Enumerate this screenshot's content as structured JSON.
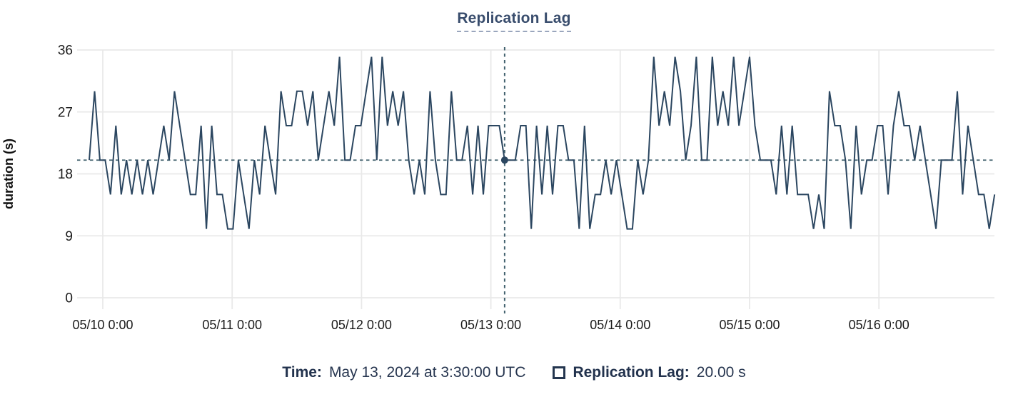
{
  "title": "Replication Lag",
  "chart_data": {
    "type": "line",
    "title": "Replication Lag",
    "xlabel": "",
    "ylabel": "duration (s)",
    "ylim": [
      0,
      36
    ],
    "yticks": [
      0,
      9,
      18,
      27,
      36
    ],
    "xticks": [
      "05/10 0:00",
      "05/11 0:00",
      "05/12 0:00",
      "05/13 0:00",
      "05/14 0:00",
      "05/15 0:00",
      "05/16 0:00"
    ],
    "grid": true,
    "legend_position": "bottom",
    "series": [
      {
        "name": "Replication Lag",
        "unit": "s",
        "x_start": "2024-05-09 21:30 UTC",
        "x_step_hours": 1,
        "values": [
          20,
          30,
          20,
          20,
          15,
          25,
          15,
          20,
          15,
          20,
          15,
          20,
          15,
          20,
          25,
          20,
          30,
          25,
          20,
          15,
          15,
          25,
          10,
          25,
          15,
          15,
          10,
          10,
          20,
          15,
          10,
          20,
          15,
          25,
          20,
          15,
          30,
          25,
          25,
          30,
          30,
          25,
          30,
          20,
          25,
          30,
          25,
          35,
          20,
          20,
          25,
          25,
          30,
          35,
          20,
          35,
          25,
          30,
          25,
          30,
          20,
          15,
          20,
          15,
          30,
          20,
          15,
          15,
          30,
          20,
          20,
          25,
          15,
          25,
          15,
          25,
          25,
          25,
          20,
          20,
          20,
          25,
          25,
          10,
          25,
          15,
          25,
          15,
          25,
          25,
          20,
          20,
          10,
          25,
          10,
          15,
          15,
          20,
          15,
          20,
          15,
          10,
          10,
          20,
          15,
          20,
          35,
          25,
          30,
          25,
          35,
          30,
          20,
          25,
          35,
          20,
          20,
          35,
          25,
          30,
          25,
          35,
          25,
          30,
          35,
          25,
          20,
          20,
          20,
          15,
          25,
          15,
          25,
          15,
          15,
          15,
          10,
          15,
          10,
          30,
          25,
          25,
          20,
          10,
          25,
          15,
          20,
          20,
          25,
          25,
          15,
          25,
          30,
          25,
          25,
          20,
          25,
          20,
          15,
          10,
          20,
          20,
          20,
          30,
          15,
          25,
          20,
          15,
          15,
          10,
          15
        ]
      }
    ],
    "crosshair": {
      "index": 78,
      "value": 20,
      "time_label": "May 13, 2024 at 3:30:00 UTC",
      "value_label": "20.00 s"
    }
  },
  "tooltip": {
    "time_label": "Time:",
    "time_value": "May 13, 2024 at 3:30:00 UTC",
    "series_swatch_icon": "square-outline-icon",
    "series_label": "Replication Lag:",
    "series_value": "20.00 s"
  },
  "colors": {
    "line": "#2b4660",
    "dot": "#2b4660",
    "crosshair": "#42616e",
    "grid": "#e9e9e9",
    "title": "#394d6d",
    "tick_text": "#1a1a1a",
    "axis_title_text": "#111111",
    "legend_text": "#26354f"
  }
}
